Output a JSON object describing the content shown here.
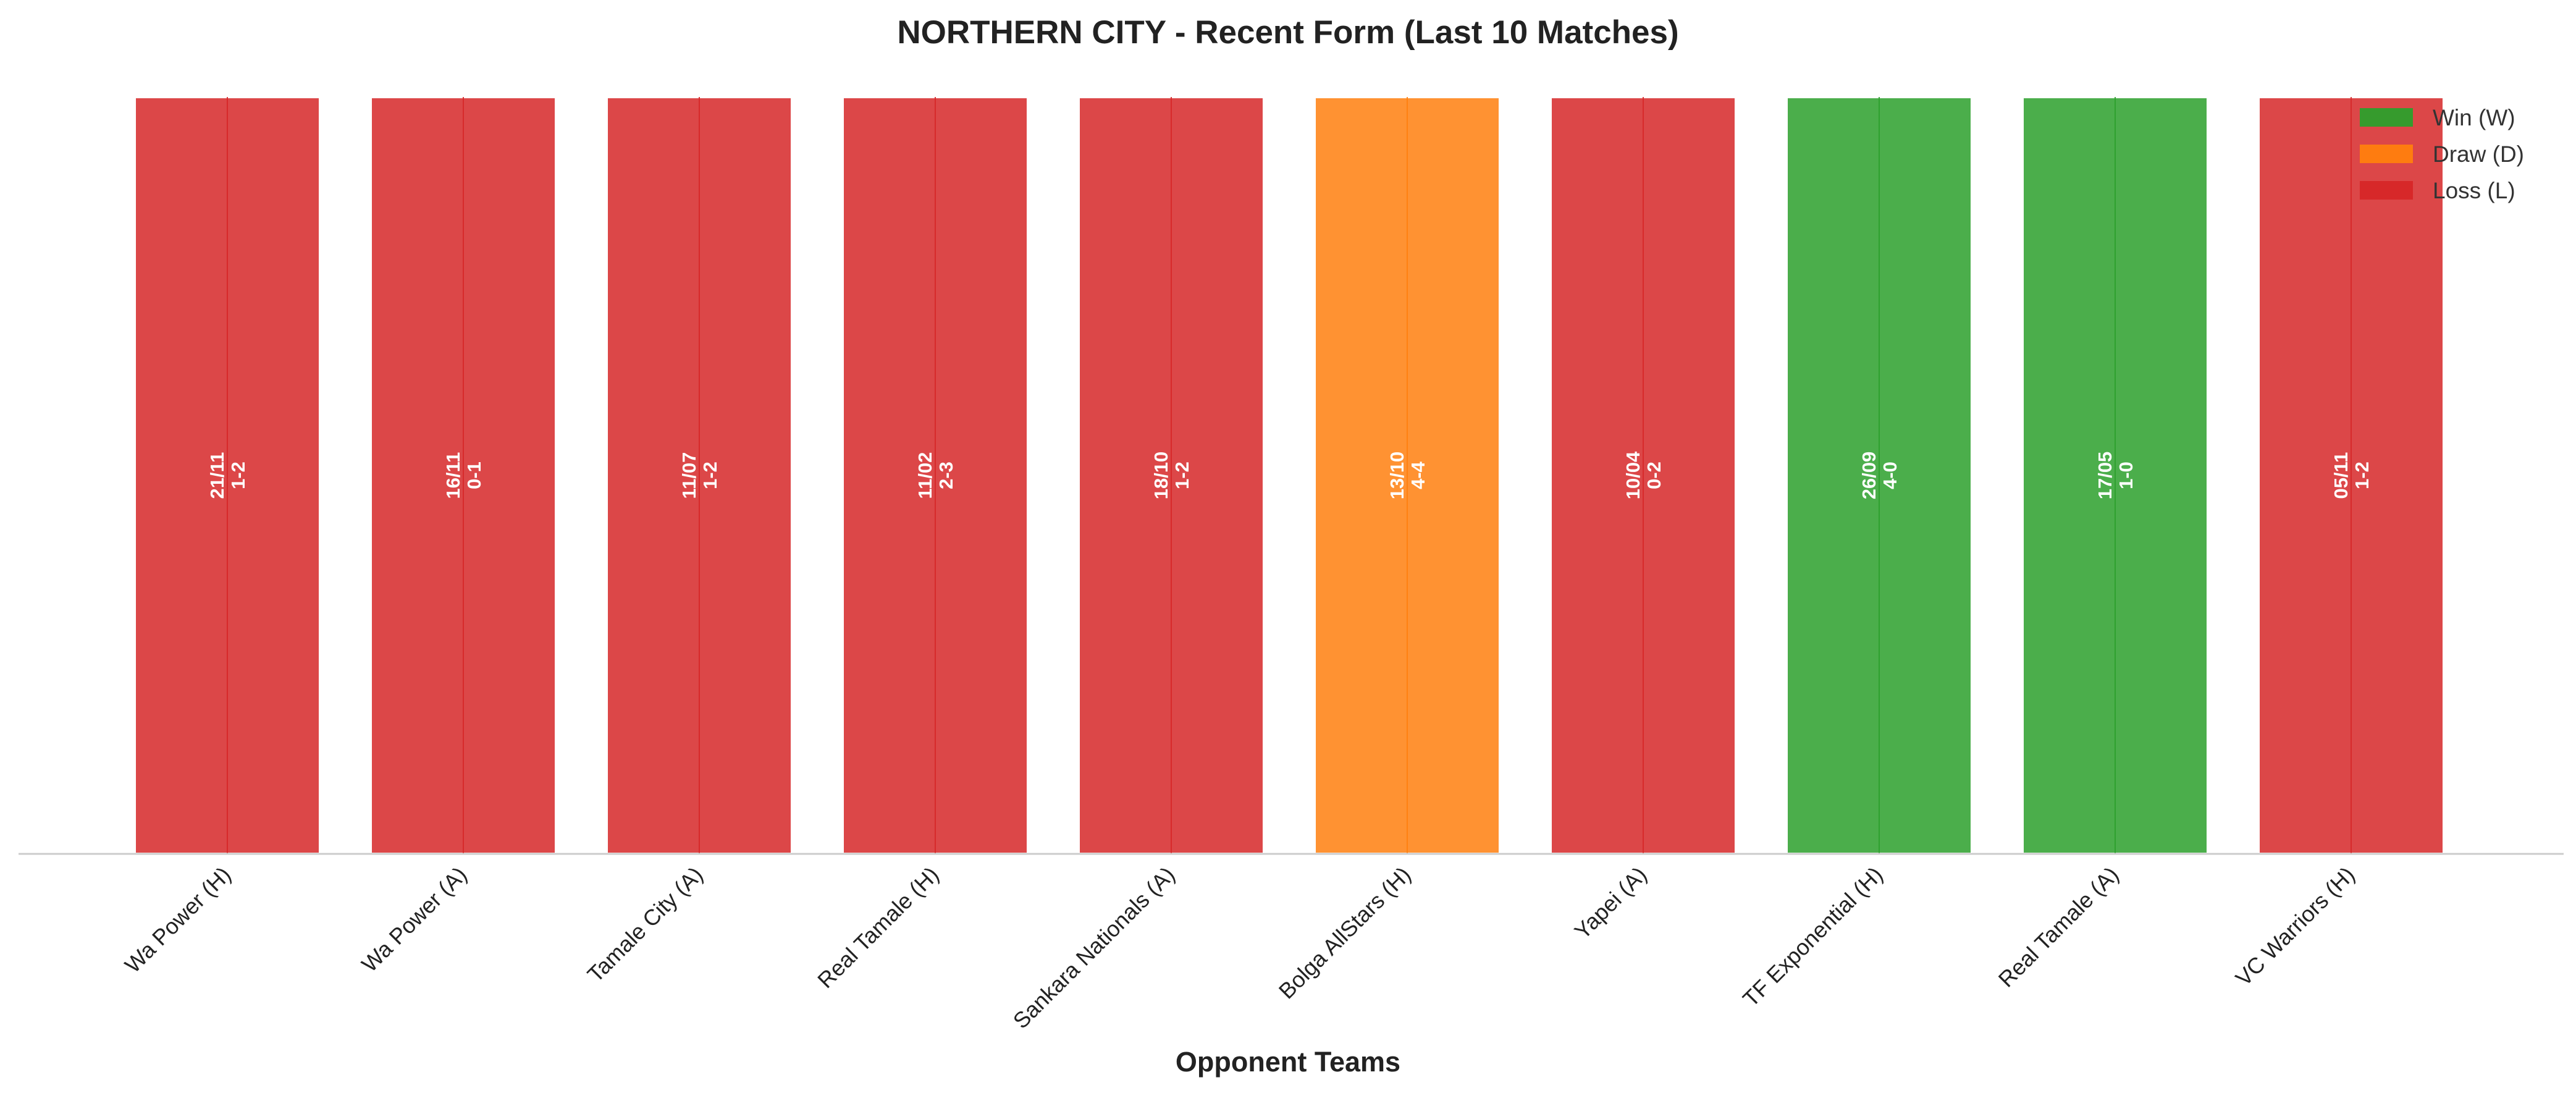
{
  "chart_data": {
    "type": "bar",
    "title": "NORTHERN CITY - Recent Form (Last 10 Matches)",
    "xlabel": "Opponent Teams",
    "ylabel": "",
    "categories": [
      "Wa Power (H)",
      "Wa Power (A)",
      "Tamale City (A)",
      "Real Tamale (H)",
      "Sankara Nationals (A)",
      "Bolga AllStars (H)",
      "Yapei (A)",
      "TF Exponential (H)",
      "Real Tamale (A)",
      "VC Warriors (H)"
    ],
    "values": [
      1,
      1,
      1,
      1,
      1,
      1,
      1,
      1,
      1,
      1
    ],
    "results": [
      "L",
      "L",
      "L",
      "L",
      "L",
      "D",
      "L",
      "W",
      "W",
      "L"
    ],
    "dates": [
      "21/11",
      "16/11",
      "11/07",
      "11/02",
      "18/10",
      "13/10",
      "10/04",
      "26/09",
      "17/05",
      "05/11"
    ],
    "scores": [
      "1-2",
      "0-1",
      "1-2",
      "2-3",
      "1-2",
      "4-4",
      "0-2",
      "4-0",
      "1-0",
      "1-2"
    ],
    "ylim": [
      0,
      1
    ],
    "grid": false,
    "legend_position": "top-right",
    "legend": [
      {
        "key": "W",
        "label": "Win (W)",
        "color": "#2ca02c"
      },
      {
        "key": "D",
        "label": "Draw (D)",
        "color": "#ff7f0e"
      },
      {
        "key": "L",
        "label": "Loss (L)",
        "color": "#d62728"
      }
    ],
    "colors": {
      "W": "#2ca02c",
      "D": "#ff7f0e",
      "L": "#d62728"
    }
  }
}
